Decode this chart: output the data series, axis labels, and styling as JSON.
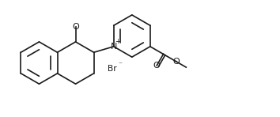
{
  "background": "#ffffff",
  "line_color": "#1a1a1a",
  "line_width": 1.2,
  "font_size": 8.0,
  "fig_width": 3.54,
  "fig_height": 1.48,
  "dpi": 100,
  "xlim": [
    0,
    10
  ],
  "ylim": [
    0,
    4.18
  ]
}
